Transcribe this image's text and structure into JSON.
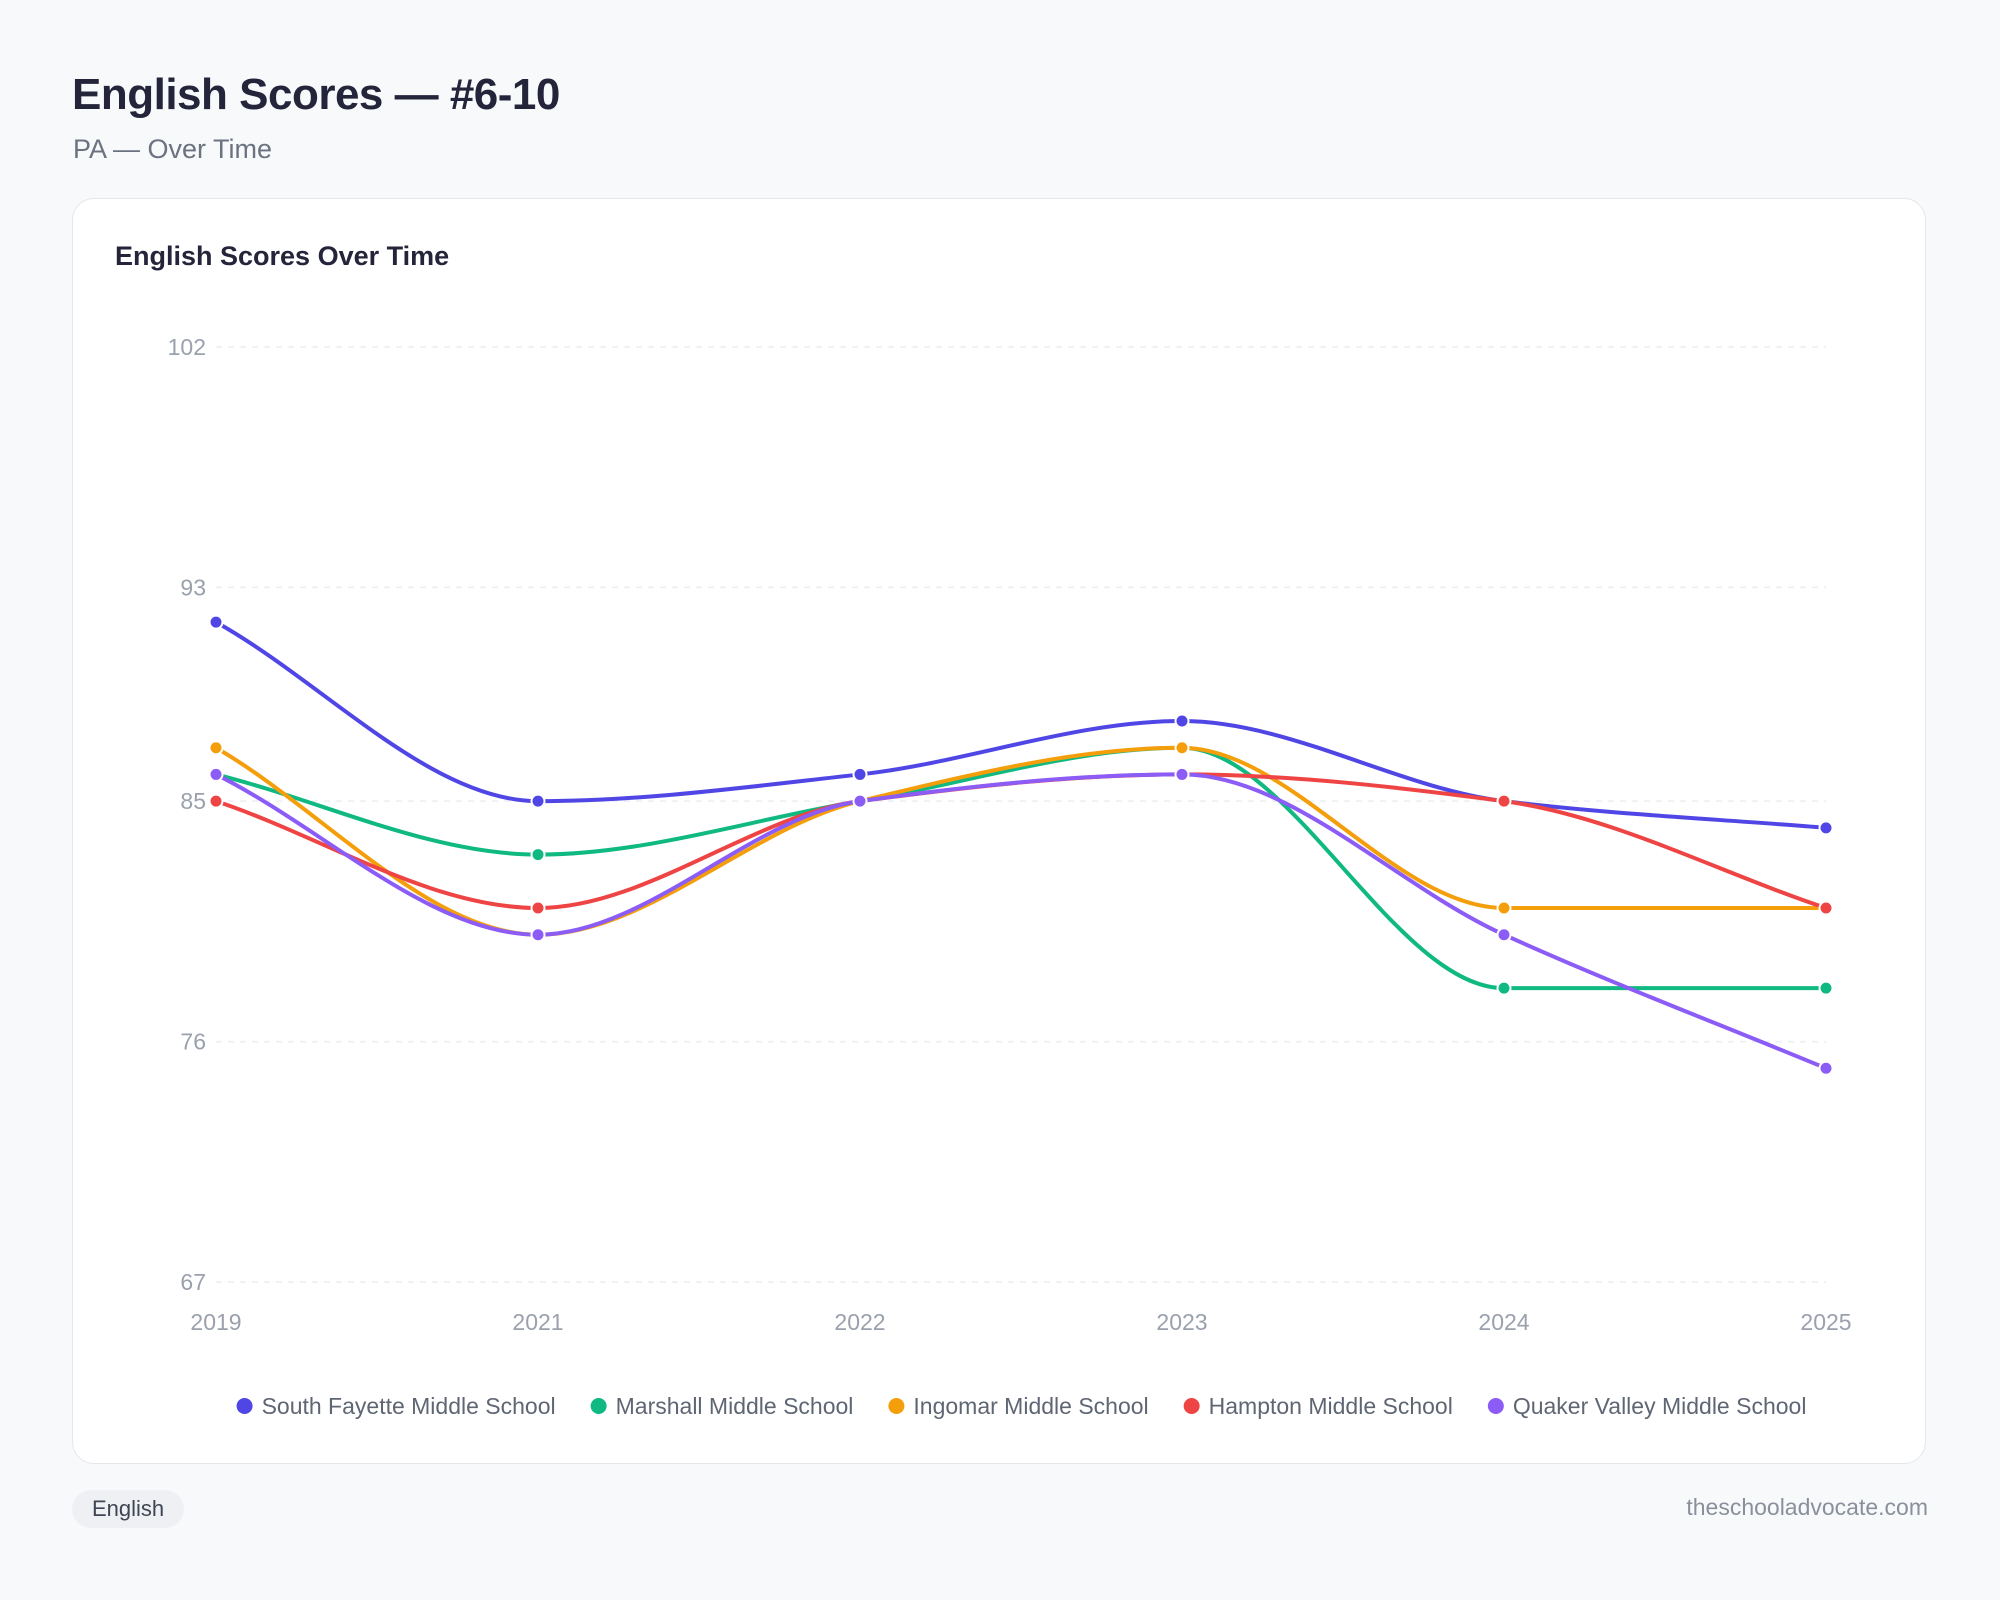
{
  "header": {
    "title": "English Scores — #6-10",
    "subtitle": "PA — Over Time"
  },
  "card": {
    "title": "English Scores Over Time"
  },
  "chart_data": {
    "type": "line",
    "title": "English Scores Over Time",
    "xlabel": "",
    "ylabel": "",
    "categories": [
      "2019",
      "2021",
      "2022",
      "2023",
      "2024",
      "2025"
    ],
    "yticks": [
      67,
      76,
      85,
      93,
      102
    ],
    "ylim": [
      67,
      102
    ],
    "grid": true,
    "legend_position": "bottom",
    "series": [
      {
        "name": "South Fayette Middle School",
        "color": "#4f46e5",
        "values": [
          91.7,
          85.0,
          86.0,
          88.0,
          85.0,
          84.0
        ]
      },
      {
        "name": "Marshall Middle School",
        "color": "#10b981",
        "values": [
          86.0,
          83.0,
          85.0,
          87.0,
          78.0,
          78.0
        ]
      },
      {
        "name": "Ingomar Middle School",
        "color": "#f59e0b",
        "values": [
          87.0,
          80.0,
          85.0,
          87.0,
          81.0,
          81.0
        ]
      },
      {
        "name": "Hampton Middle School",
        "color": "#ef4444",
        "values": [
          85.0,
          81.0,
          85.0,
          86.0,
          85.0,
          81.0
        ]
      },
      {
        "name": "Quaker Valley Middle School",
        "color": "#8b5cf6",
        "values": [
          86.0,
          80.0,
          85.0,
          86.0,
          80.0,
          75.0
        ]
      }
    ]
  },
  "footer": {
    "tag": "English",
    "source": "theschooladvocate.com"
  }
}
